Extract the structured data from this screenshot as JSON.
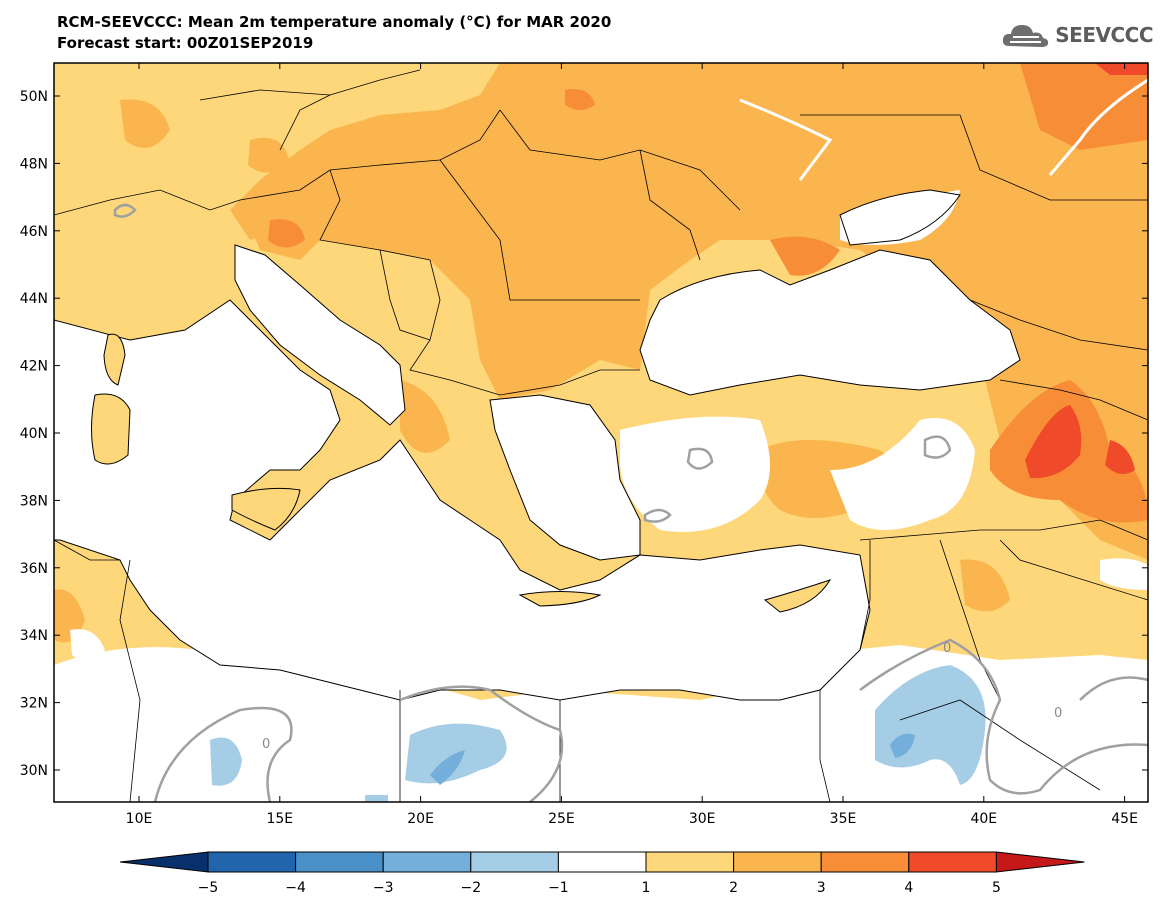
{
  "header": {
    "title": "RCM-SEEVCCC: Mean 2m temperature anomaly (°C) for MAR 2020",
    "subtitle": "Forecast start: 00Z01SEP2019"
  },
  "logo": {
    "text": "SEEVCCC",
    "icon": "cloud-icon"
  },
  "axes": {
    "lat_labels": [
      "50N",
      "48N",
      "46N",
      "44N",
      "42N",
      "40N",
      "38N",
      "36N",
      "34N",
      "32N",
      "30N"
    ],
    "lon_labels": [
      "10E",
      "15E",
      "20E",
      "25E",
      "30E",
      "35E",
      "40E",
      "45E"
    ]
  },
  "contour_labels": [
    "0",
    "0",
    "0"
  ],
  "colorbar": {
    "tick_labels": [
      "−5",
      "−4",
      "−3",
      "−2",
      "−1",
      "1",
      "2",
      "3",
      "4",
      "5"
    ],
    "colors": [
      "#08306b",
      "#2166ac",
      "#4a90c8",
      "#74afdc",
      "#a6cde6",
      "#ffffff",
      "#fdd77a",
      "#fbb54e",
      "#f88d38",
      "#ef4b2a",
      "#c51818"
    ]
  },
  "colors": {
    "land_light": "#fdd77a",
    "land_mid": "#fbb54e",
    "land_warm": "#f88d38",
    "land_hot": "#ef4b2a",
    "land_cold": "#a6cde6"
  }
}
